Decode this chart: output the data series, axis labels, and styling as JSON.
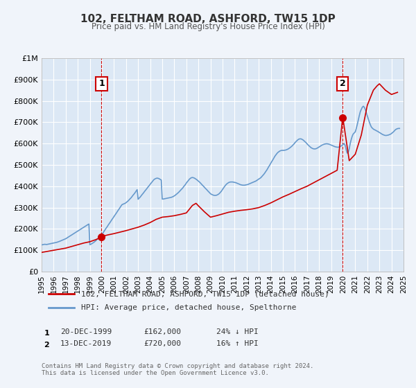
{
  "title": "102, FELTHAM ROAD, ASHFORD, TW15 1DP",
  "subtitle": "Price paid vs. HM Land Registry's House Price Index (HPI)",
  "xlabel": "",
  "ylabel": "",
  "background_color": "#f0f4fa",
  "plot_bg_color": "#dce8f5",
  "grid_color": "#ffffff",
  "xmin": 1995,
  "xmax": 2025,
  "ymin": 0,
  "ymax": 1000000,
  "yticks": [
    0,
    100000,
    200000,
    300000,
    400000,
    500000,
    600000,
    700000,
    800000,
    900000,
    1000000
  ],
  "ytick_labels": [
    "£0",
    "£100K",
    "£200K",
    "£300K",
    "£400K",
    "£500K",
    "£600K",
    "£700K",
    "£800K",
    "£900K",
    "£1M"
  ],
  "xticks": [
    1995,
    1996,
    1997,
    1998,
    1999,
    2000,
    2001,
    2002,
    2003,
    2004,
    2005,
    2006,
    2007,
    2008,
    2009,
    2010,
    2011,
    2012,
    2013,
    2014,
    2015,
    2016,
    2017,
    2018,
    2019,
    2020,
    2021,
    2022,
    2023,
    2024,
    2025
  ],
  "sale1_x": 1999.97,
  "sale1_y": 162000,
  "sale1_label": "1",
  "sale1_date": "20-DEC-1999",
  "sale1_price": "£162,000",
  "sale1_hpi": "24% ↓ HPI",
  "sale2_x": 2019.95,
  "sale2_y": 720000,
  "sale2_label": "2",
  "sale2_date": "13-DEC-2019",
  "sale2_price": "£720,000",
  "sale2_hpi": "16% ↑ HPI",
  "red_line_color": "#cc0000",
  "blue_line_color": "#6699cc",
  "vline_color": "#cc0000",
  "legend_line1": "102, FELTHAM ROAD, ASHFORD, TW15 1DP (detached house)",
  "legend_line2": "HPI: Average price, detached house, Spelthorne",
  "footer": "Contains HM Land Registry data © Crown copyright and database right 2024.\nThis data is licensed under the Open Government Licence v3.0.",
  "hpi_data": {
    "years": [
      1995.0,
      1995.08,
      1995.17,
      1995.25,
      1995.33,
      1995.42,
      1995.5,
      1995.58,
      1995.67,
      1995.75,
      1995.83,
      1995.92,
      1996.0,
      1996.08,
      1996.17,
      1996.25,
      1996.33,
      1996.42,
      1996.5,
      1996.58,
      1996.67,
      1996.75,
      1996.83,
      1996.92,
      1997.0,
      1997.08,
      1997.17,
      1997.25,
      1997.33,
      1997.42,
      1997.5,
      1997.58,
      1997.67,
      1997.75,
      1997.83,
      1997.92,
      1998.0,
      1998.08,
      1998.17,
      1998.25,
      1998.33,
      1998.42,
      1998.5,
      1998.58,
      1998.67,
      1998.75,
      1998.83,
      1998.92,
      1999.0,
      1999.08,
      1999.17,
      1999.25,
      1999.33,
      1999.42,
      1999.5,
      1999.58,
      1999.67,
      1999.75,
      1999.83,
      1999.92,
      2000.0,
      2000.08,
      2000.17,
      2000.25,
      2000.33,
      2000.42,
      2000.5,
      2000.58,
      2000.67,
      2000.75,
      2000.83,
      2000.92,
      2001.0,
      2001.08,
      2001.17,
      2001.25,
      2001.33,
      2001.42,
      2001.5,
      2001.58,
      2001.67,
      2001.75,
      2001.83,
      2001.92,
      2002.0,
      2002.08,
      2002.17,
      2002.25,
      2002.33,
      2002.42,
      2002.5,
      2002.58,
      2002.67,
      2002.75,
      2002.83,
      2002.92,
      2003.0,
      2003.08,
      2003.17,
      2003.25,
      2003.33,
      2003.42,
      2003.5,
      2003.58,
      2003.67,
      2003.75,
      2003.83,
      2003.92,
      2004.0,
      2004.08,
      2004.17,
      2004.25,
      2004.33,
      2004.42,
      2004.5,
      2004.58,
      2004.67,
      2004.75,
      2004.83,
      2004.92,
      2005.0,
      2005.08,
      2005.17,
      2005.25,
      2005.33,
      2005.42,
      2005.5,
      2005.58,
      2005.67,
      2005.75,
      2005.83,
      2005.92,
      2006.0,
      2006.08,
      2006.17,
      2006.25,
      2006.33,
      2006.42,
      2006.5,
      2006.58,
      2006.67,
      2006.75,
      2006.83,
      2006.92,
      2007.0,
      2007.08,
      2007.17,
      2007.25,
      2007.33,
      2007.42,
      2007.5,
      2007.58,
      2007.67,
      2007.75,
      2007.83,
      2007.92,
      2008.0,
      2008.08,
      2008.17,
      2008.25,
      2008.33,
      2008.42,
      2008.5,
      2008.58,
      2008.67,
      2008.75,
      2008.83,
      2008.92,
      2009.0,
      2009.08,
      2009.17,
      2009.25,
      2009.33,
      2009.42,
      2009.5,
      2009.58,
      2009.67,
      2009.75,
      2009.83,
      2009.92,
      2010.0,
      2010.08,
      2010.17,
      2010.25,
      2010.33,
      2010.42,
      2010.5,
      2010.58,
      2010.67,
      2010.75,
      2010.83,
      2010.92,
      2011.0,
      2011.08,
      2011.17,
      2011.25,
      2011.33,
      2011.42,
      2011.5,
      2011.58,
      2011.67,
      2011.75,
      2011.83,
      2011.92,
      2012.0,
      2012.08,
      2012.17,
      2012.25,
      2012.33,
      2012.42,
      2012.5,
      2012.58,
      2012.67,
      2012.75,
      2012.83,
      2012.92,
      2013.0,
      2013.08,
      2013.17,
      2013.25,
      2013.33,
      2013.42,
      2013.5,
      2013.58,
      2013.67,
      2013.75,
      2013.83,
      2013.92,
      2014.0,
      2014.08,
      2014.17,
      2014.25,
      2014.33,
      2014.42,
      2014.5,
      2014.58,
      2014.67,
      2014.75,
      2014.83,
      2014.92,
      2015.0,
      2015.08,
      2015.17,
      2015.25,
      2015.33,
      2015.42,
      2015.5,
      2015.58,
      2015.67,
      2015.75,
      2015.83,
      2015.92,
      2016.0,
      2016.08,
      2016.17,
      2016.25,
      2016.33,
      2016.42,
      2016.5,
      2016.58,
      2016.67,
      2016.75,
      2016.83,
      2016.92,
      2017.0,
      2017.08,
      2017.17,
      2017.25,
      2017.33,
      2017.42,
      2017.5,
      2017.58,
      2017.67,
      2017.75,
      2017.83,
      2017.92,
      2018.0,
      2018.08,
      2018.17,
      2018.25,
      2018.33,
      2018.42,
      2018.5,
      2018.58,
      2018.67,
      2018.75,
      2018.83,
      2018.92,
      2019.0,
      2019.08,
      2019.17,
      2019.25,
      2019.33,
      2019.42,
      2019.5,
      2019.58,
      2019.67,
      2019.75,
      2019.83,
      2019.92,
      2020.0,
      2020.08,
      2020.17,
      2020.25,
      2020.33,
      2020.42,
      2020.5,
      2020.58,
      2020.67,
      2020.75,
      2020.83,
      2020.92,
      2021.0,
      2021.08,
      2021.17,
      2021.25,
      2021.33,
      2021.42,
      2021.5,
      2021.58,
      2021.67,
      2021.75,
      2021.83,
      2021.92,
      2022.0,
      2022.08,
      2022.17,
      2022.25,
      2022.33,
      2022.42,
      2022.5,
      2022.58,
      2022.67,
      2022.75,
      2022.83,
      2022.92,
      2023.0,
      2023.08,
      2023.17,
      2023.25,
      2023.33,
      2023.42,
      2023.5,
      2023.58,
      2023.67,
      2023.75,
      2023.83,
      2023.92,
      2024.0,
      2024.08,
      2024.17,
      2024.25,
      2024.33,
      2024.42,
      2024.5,
      2024.58,
      2024.67
    ],
    "values": [
      125000,
      126000,
      127000,
      128000,
      127500,
      127000,
      128000,
      129000,
      130000,
      131000,
      132000,
      133000,
      134000,
      135000,
      136000,
      137000,
      138500,
      140000,
      142000,
      144000,
      146000,
      148000,
      150000,
      152000,
      154000,
      157000,
      160000,
      163000,
      166000,
      169000,
      172000,
      175000,
      178000,
      181000,
      184000,
      187000,
      190000,
      193000,
      196000,
      199000,
      202000,
      205000,
      208000,
      211000,
      214000,
      217000,
      220000,
      223000,
      126000,
      128000,
      131000,
      134000,
      137000,
      141000,
      145000,
      150000,
      155000,
      160000,
      165000,
      170000,
      175000,
      181000,
      188000,
      195000,
      202000,
      209000,
      216000,
      223000,
      230000,
      237000,
      244000,
      251000,
      258000,
      265000,
      272000,
      279000,
      286000,
      293000,
      300000,
      307000,
      314000,
      316000,
      318000,
      320000,
      323000,
      327000,
      331000,
      336000,
      341000,
      346000,
      352000,
      358000,
      364000,
      370000,
      377000,
      384000,
      339000,
      344000,
      349000,
      355000,
      361000,
      367000,
      373000,
      379000,
      385000,
      391000,
      397000,
      403000,
      409000,
      415000,
      421000,
      427000,
      432000,
      435000,
      437000,
      438000,
      437000,
      435000,
      432000,
      429000,
      340000,
      340000,
      341000,
      342000,
      343000,
      344000,
      345000,
      346000,
      347000,
      348000,
      350000,
      352000,
      355000,
      358000,
      362000,
      366000,
      370000,
      375000,
      380000,
      385000,
      390000,
      396000,
      402000,
      408000,
      415000,
      421000,
      427000,
      433000,
      437000,
      440000,
      441000,
      440000,
      438000,
      435000,
      432000,
      428000,
      424000,
      420000,
      415000,
      410000,
      405000,
      400000,
      395000,
      390000,
      385000,
      380000,
      375000,
      370000,
      365000,
      362000,
      360000,
      358000,
      357000,
      357000,
      358000,
      360000,
      363000,
      367000,
      372000,
      378000,
      385000,
      392000,
      399000,
      405000,
      410000,
      414000,
      417000,
      419000,
      420000,
      420000,
      420000,
      419000,
      418000,
      417000,
      415000,
      413000,
      411000,
      409000,
      407000,
      406000,
      405000,
      405000,
      405000,
      406000,
      407000,
      408000,
      410000,
      412000,
      414000,
      416000,
      418000,
      420000,
      422000,
      424000,
      427000,
      430000,
      433000,
      436000,
      440000,
      445000,
      450000,
      456000,
      462000,
      469000,
      476000,
      484000,
      492000,
      500000,
      508000,
      516000,
      524000,
      532000,
      540000,
      547000,
      553000,
      558000,
      562000,
      565000,
      567000,
      568000,
      568000,
      568000,
      569000,
      570000,
      572000,
      574000,
      577000,
      580000,
      584000,
      588000,
      593000,
      598000,
      604000,
      609000,
      614000,
      618000,
      621000,
      622000,
      622000,
      620000,
      617000,
      613000,
      609000,
      604000,
      599000,
      594000,
      589000,
      585000,
      581000,
      578000,
      576000,
      575000,
      575000,
      576000,
      578000,
      581000,
      584000,
      587000,
      590000,
      593000,
      595000,
      597000,
      598000,
      599000,
      599000,
      598000,
      597000,
      595000,
      593000,
      591000,
      589000,
      587000,
      585000,
      584000,
      583000,
      583000,
      584000,
      586000,
      589000,
      592000,
      596000,
      600000,
      590000,
      570000,
      555000,
      560000,
      575000,
      600000,
      620000,
      635000,
      645000,
      650000,
      655000,
      670000,
      690000,
      710000,
      730000,
      750000,
      760000,
      770000,
      775000,
      770000,
      760000,
      745000,
      730000,
      715000,
      700000,
      688000,
      678000,
      672000,
      668000,
      665000,
      663000,
      660000,
      658000,
      655000,
      652000,
      649000,
      646000,
      643000,
      641000,
      639000,
      638000,
      638000,
      639000,
      640000,
      642000,
      644000,
      647000,
      651000,
      655000,
      660000,
      665000,
      668000,
      670000,
      671000,
      671000
    ]
  },
  "red_data": {
    "years": [
      1995.0,
      1995.5,
      1996.0,
      1996.5,
      1997.0,
      1997.5,
      1998.0,
      1998.5,
      1999.0,
      1999.5,
      1999.97,
      2000.0,
      2000.5,
      2001.0,
      2001.5,
      2002.0,
      2002.5,
      2003.0,
      2003.5,
      2004.0,
      2004.5,
      2005.0,
      2005.5,
      2006.0,
      2006.5,
      2007.0,
      2007.5,
      2007.8,
      2008.0,
      2008.5,
      2009.0,
      2009.5,
      2010.0,
      2010.5,
      2011.0,
      2011.5,
      2012.0,
      2012.5,
      2013.0,
      2013.5,
      2014.0,
      2014.5,
      2015.0,
      2015.5,
      2016.0,
      2016.5,
      2017.0,
      2017.5,
      2018.0,
      2018.5,
      2019.0,
      2019.5,
      2019.95,
      2020.0,
      2020.5,
      2021.0,
      2021.5,
      2022.0,
      2022.5,
      2022.8,
      2023.0,
      2023.5,
      2024.0,
      2024.5
    ],
    "values": [
      90000,
      95000,
      100000,
      105000,
      110000,
      118000,
      126000,
      134000,
      140000,
      150000,
      162000,
      165000,
      172000,
      178000,
      185000,
      192000,
      200000,
      208000,
      218000,
      230000,
      245000,
      255000,
      258000,
      262000,
      268000,
      275000,
      310000,
      320000,
      308000,
      280000,
      255000,
      262000,
      270000,
      278000,
      283000,
      287000,
      290000,
      294000,
      300000,
      310000,
      322000,
      336000,
      350000,
      362000,
      375000,
      388000,
      400000,
      415000,
      430000,
      445000,
      460000,
      475000,
      720000,
      710000,
      520000,
      550000,
      640000,
      780000,
      850000,
      870000,
      880000,
      850000,
      830000,
      840000
    ]
  }
}
